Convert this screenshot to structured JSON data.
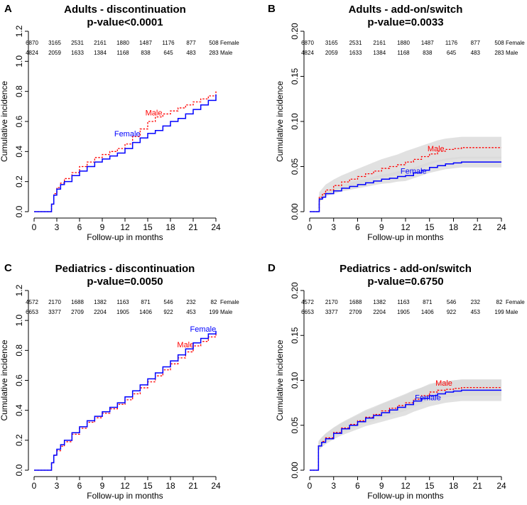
{
  "figure": {
    "x_label": "Follow-up in months",
    "y_label": "Cumulative incidence",
    "colors": {
      "female": "#0000ff",
      "male": "#ff0000",
      "band": "#d9d9d9"
    }
  },
  "chart_data": [
    {
      "panel": "A",
      "type": "line",
      "title": "Adults - discontinuation",
      "subtitle": "p-value<0.0001",
      "xlabel": "Follow-up in months",
      "ylabel": "Cumulative incidence",
      "xlim": [
        0,
        24
      ],
      "ylim": [
        0,
        1.2
      ],
      "x_ticks": [
        "0",
        "3",
        "6",
        "9",
        "12",
        "15",
        "18",
        "21",
        "24"
      ],
      "y_ticks": [
        "0.0",
        "0.2",
        "0.4",
        "0.6",
        "0.8",
        "1.0",
        "1.2"
      ],
      "y_tick_values": [
        0,
        0.2,
        0.4,
        0.6,
        0.8,
        1.0,
        1.2
      ],
      "confidence_bands": false,
      "risk_table": {
        "times": [
          0,
          3,
          6,
          9,
          12,
          15,
          18,
          21,
          24
        ],
        "rows": [
          {
            "name": "Female",
            "values": [
              "6870",
              "3165",
              "2531",
              "2161",
              "1880",
              "1487",
              "1176",
              "877",
              "508"
            ]
          },
          {
            "name": "Male",
            "values": [
              "4824",
              "2059",
              "1633",
              "1384",
              "1168",
              "838",
              "645",
              "483",
              "283"
            ]
          }
        ]
      },
      "series": [
        {
          "name": "Female",
          "label": "Female",
          "color": "#0000ff",
          "dash": false,
          "label_pos": [
            12.3,
            0.5
          ],
          "x": [
            0,
            2,
            2.3,
            2.6,
            3,
            3.5,
            4,
            5,
            6,
            7,
            8,
            9,
            10,
            11,
            12,
            13,
            14,
            15,
            16,
            17,
            18,
            19,
            20,
            21,
            22,
            23,
            24
          ],
          "y": [
            0,
            0,
            0.05,
            0.11,
            0.15,
            0.18,
            0.2,
            0.24,
            0.27,
            0.3,
            0.33,
            0.35,
            0.37,
            0.39,
            0.42,
            0.46,
            0.49,
            0.52,
            0.54,
            0.57,
            0.6,
            0.62,
            0.65,
            0.68,
            0.71,
            0.74,
            0.78
          ]
        },
        {
          "name": "Male",
          "label": "Male",
          "color": "#ff0000",
          "dash": true,
          "label_pos": [
            15.8,
            0.64
          ],
          "x": [
            0,
            2,
            2.3,
            2.6,
            3,
            3.5,
            4,
            5,
            6,
            7,
            8,
            9,
            10,
            11,
            12,
            13,
            14,
            15,
            16,
            17,
            18,
            19,
            20,
            21,
            22,
            23,
            24
          ],
          "y": [
            0,
            0,
            0.05,
            0.12,
            0.16,
            0.19,
            0.22,
            0.26,
            0.3,
            0.33,
            0.36,
            0.38,
            0.4,
            0.42,
            0.45,
            0.5,
            0.55,
            0.6,
            0.63,
            0.65,
            0.67,
            0.69,
            0.71,
            0.73,
            0.75,
            0.77,
            0.8
          ]
        }
      ]
    },
    {
      "panel": "B",
      "type": "line",
      "title": "Adults - add-on/switch",
      "subtitle": "p-value=0.0033",
      "xlabel": "Follow-up in months",
      "ylabel": "Cumulative incidence",
      "xlim": [
        0,
        24
      ],
      "ylim": [
        0,
        0.2
      ],
      "x_ticks": [
        "0",
        "3",
        "6",
        "9",
        "12",
        "15",
        "18",
        "21",
        "24"
      ],
      "y_ticks": [
        "0.00",
        "0.05",
        "0.10",
        "0.15",
        "0.20"
      ],
      "y_tick_values": [
        0,
        0.05,
        0.1,
        0.15,
        0.2
      ],
      "confidence_bands": true,
      "risk_table": {
        "times": [
          0,
          3,
          6,
          9,
          12,
          15,
          18,
          21,
          24
        ],
        "rows": [
          {
            "name": "Female",
            "values": [
              "6870",
              "3165",
              "2531",
              "2161",
              "1880",
              "1487",
              "1176",
              "877",
              "508"
            ]
          },
          {
            "name": "Male",
            "values": [
              "4824",
              "2059",
              "1633",
              "1384",
              "1168",
              "838",
              "645",
              "483",
              "283"
            ]
          }
        ]
      },
      "series": [
        {
          "name": "Female",
          "label": "Female",
          "color": "#0000ff",
          "dash": false,
          "label_pos": [
            13,
            0.042
          ],
          "band": 0.006,
          "x": [
            0,
            1,
            1.2,
            1.6,
            2,
            3,
            4,
            5,
            6,
            7,
            8,
            9,
            10,
            11,
            12,
            13,
            14,
            15,
            16,
            17,
            18,
            19,
            24
          ],
          "y": [
            0,
            0,
            0.014,
            0.016,
            0.02,
            0.023,
            0.026,
            0.028,
            0.03,
            0.032,
            0.034,
            0.036,
            0.037,
            0.039,
            0.04,
            0.043,
            0.046,
            0.049,
            0.051,
            0.053,
            0.054,
            0.055,
            0.055
          ]
        },
        {
          "name": "Male",
          "label": "Male",
          "color": "#ff0000",
          "dash": true,
          "label_pos": [
            15.8,
            0.067
          ],
          "band": 0.012,
          "x": [
            0,
            1,
            1.2,
            1.6,
            2,
            3,
            4,
            5,
            6,
            7,
            8,
            9,
            10,
            11,
            12,
            13,
            14,
            15,
            16,
            17,
            18,
            19,
            24
          ],
          "y": [
            0,
            0,
            0.016,
            0.02,
            0.024,
            0.029,
            0.033,
            0.036,
            0.039,
            0.042,
            0.045,
            0.048,
            0.05,
            0.052,
            0.055,
            0.058,
            0.061,
            0.064,
            0.067,
            0.069,
            0.07,
            0.071,
            0.071
          ]
        }
      ]
    },
    {
      "panel": "C",
      "type": "line",
      "title": "Pediatrics - discontinuation",
      "subtitle": "p-value=0.0050",
      "xlabel": "Follow-up in months",
      "ylabel": "Cumulative incidence",
      "xlim": [
        0,
        24
      ],
      "ylim": [
        0,
        1.2
      ],
      "x_ticks": [
        "0",
        "3",
        "6",
        "9",
        "12",
        "15",
        "18",
        "21",
        "24"
      ],
      "y_ticks": [
        "0.0",
        "0.2",
        "0.4",
        "0.6",
        "0.8",
        "1.0",
        "1.2"
      ],
      "y_tick_values": [
        0,
        0.2,
        0.4,
        0.6,
        0.8,
        1.0,
        1.2
      ],
      "confidence_bands": false,
      "risk_table": {
        "times": [
          0,
          3,
          6,
          9,
          12,
          15,
          18,
          21,
          24
        ],
        "rows": [
          {
            "name": "Female",
            "values": [
              "4572",
              "2170",
              "1688",
              "1382",
              "1163",
              "871",
              "546",
              "232",
              "82"
            ]
          },
          {
            "name": "Male",
            "values": [
              "6653",
              "3377",
              "2709",
              "2204",
              "1905",
              "1406",
              "922",
              "453",
              "199"
            ]
          }
        ]
      },
      "series": [
        {
          "name": "Female",
          "label": "Female",
          "color": "#0000ff",
          "dash": false,
          "label_pos": [
            22.3,
            0.925
          ],
          "x": [
            0,
            2,
            2.3,
            2.6,
            3,
            3.5,
            4,
            5,
            6,
            7,
            8,
            9,
            10,
            11,
            12,
            13,
            14,
            15,
            16,
            17,
            18,
            19,
            20,
            21,
            22,
            23,
            24
          ],
          "y": [
            0,
            0,
            0.05,
            0.1,
            0.14,
            0.17,
            0.2,
            0.25,
            0.29,
            0.33,
            0.36,
            0.39,
            0.42,
            0.45,
            0.49,
            0.53,
            0.57,
            0.61,
            0.65,
            0.69,
            0.73,
            0.77,
            0.81,
            0.85,
            0.88,
            0.91,
            0.93
          ]
        },
        {
          "name": "Male",
          "label": "Male",
          "color": "#ff0000",
          "dash": true,
          "label_pos": [
            20,
            0.82
          ],
          "x": [
            0,
            2,
            2.3,
            2.6,
            3,
            3.5,
            4,
            5,
            6,
            7,
            8,
            9,
            10,
            11,
            12,
            13,
            14,
            15,
            16,
            17,
            18,
            19,
            20,
            21,
            22,
            23,
            24
          ],
          "y": [
            0,
            0,
            0.05,
            0.1,
            0.13,
            0.16,
            0.19,
            0.24,
            0.28,
            0.32,
            0.35,
            0.38,
            0.41,
            0.44,
            0.47,
            0.51,
            0.55,
            0.59,
            0.63,
            0.67,
            0.71,
            0.75,
            0.79,
            0.83,
            0.86,
            0.89,
            0.92
          ]
        }
      ]
    },
    {
      "panel": "D",
      "type": "line",
      "title": "Pediatrics - add-on/switch",
      "subtitle": "p-value=0.6750",
      "xlabel": "Follow-up in months",
      "ylabel": "Cumulative incidence",
      "xlim": [
        0,
        24
      ],
      "ylim": [
        0,
        0.2
      ],
      "x_ticks": [
        "0",
        "3",
        "6",
        "9",
        "12",
        "15",
        "18",
        "21",
        "24"
      ],
      "y_ticks": [
        "0.00",
        "0.05",
        "0.10",
        "0.15",
        "0.20"
      ],
      "y_tick_values": [
        0,
        0.05,
        0.1,
        0.15,
        0.2
      ],
      "confidence_bands": true,
      "risk_table": {
        "times": [
          0,
          3,
          6,
          9,
          12,
          15,
          18,
          21,
          24
        ],
        "rows": [
          {
            "name": "Female",
            "values": [
              "4572",
              "2170",
              "1688",
              "1382",
              "1163",
              "871",
              "546",
              "232",
              "82"
            ]
          },
          {
            "name": "Male",
            "values": [
              "6653",
              "3377",
              "2709",
              "2204",
              "1905",
              "1406",
              "922",
              "453",
              "199"
            ]
          }
        ]
      },
      "series": [
        {
          "name": "Female",
          "label": "Female",
          "color": "#0000ff",
          "dash": false,
          "label_pos": [
            14.8,
            0.078
          ],
          "band": 0.012,
          "x": [
            0,
            1,
            1.1,
            1.5,
            2,
            3,
            4,
            5,
            6,
            7,
            8,
            9,
            10,
            11,
            12,
            13,
            14,
            15,
            16,
            17,
            18,
            19,
            24
          ],
          "y": [
            0,
            0,
            0.027,
            0.031,
            0.035,
            0.041,
            0.046,
            0.05,
            0.054,
            0.058,
            0.061,
            0.064,
            0.067,
            0.07,
            0.073,
            0.077,
            0.08,
            0.083,
            0.085,
            0.087,
            0.088,
            0.089,
            0.089
          ]
        },
        {
          "name": "Male",
          "label": "Male",
          "color": "#ff0000",
          "dash": true,
          "label_pos": [
            16.8,
            0.094
          ],
          "band": 0.009,
          "x": [
            0,
            1,
            1.1,
            1.5,
            2,
            3,
            4,
            5,
            6,
            7,
            8,
            9,
            10,
            11,
            12,
            13,
            14,
            15,
            16,
            17,
            18,
            19,
            24
          ],
          "y": [
            0,
            0,
            0.027,
            0.032,
            0.036,
            0.042,
            0.047,
            0.051,
            0.055,
            0.059,
            0.062,
            0.066,
            0.069,
            0.072,
            0.075,
            0.079,
            0.083,
            0.087,
            0.089,
            0.09,
            0.091,
            0.092,
            0.092
          ]
        }
      ]
    }
  ]
}
